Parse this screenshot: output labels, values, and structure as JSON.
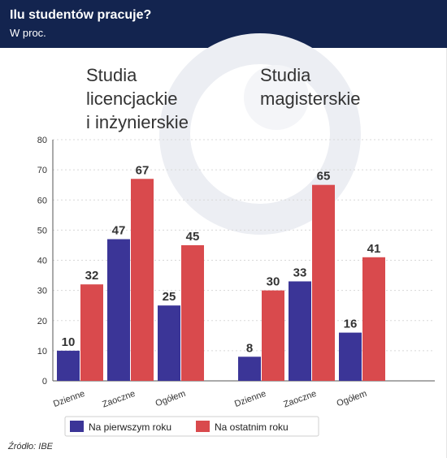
{
  "header": {
    "title": "Ilu studentów pracuje?",
    "subtitle": "W proc."
  },
  "groups": [
    {
      "label": "Studia\nlicencjackie\ni inżynierskie"
    },
    {
      "label": "Studia\nmagisterskie"
    }
  ],
  "chart_data": {
    "type": "bar",
    "title": "Ilu studentów pracuje?",
    "subtitle": "W proc.",
    "categories": [
      "Dzienne",
      "Zaoczne",
      "Ogółem",
      "Dzienne",
      "Zaoczne",
      "Ogółem"
    ],
    "groups": [
      "Studia licencjackie i inżynierskie",
      "Studia magisterskie"
    ],
    "series": [
      {
        "name": "Na pierwszym roku",
        "color": "#3b3597",
        "values": [
          10,
          47,
          25,
          8,
          33,
          16
        ]
      },
      {
        "name": "Na ostatnim roku",
        "color": "#d94a4d",
        "values": [
          32,
          67,
          45,
          30,
          65,
          41
        ]
      }
    ],
    "ylim": [
      0,
      80
    ],
    "yticks": [
      0,
      10,
      20,
      30,
      40,
      50,
      60,
      70,
      80
    ],
    "grid": true,
    "legend": "bottom"
  },
  "source": "Źródło: IBE",
  "colors": {
    "header": "#13244f",
    "grid": "#d8d8d8"
  }
}
